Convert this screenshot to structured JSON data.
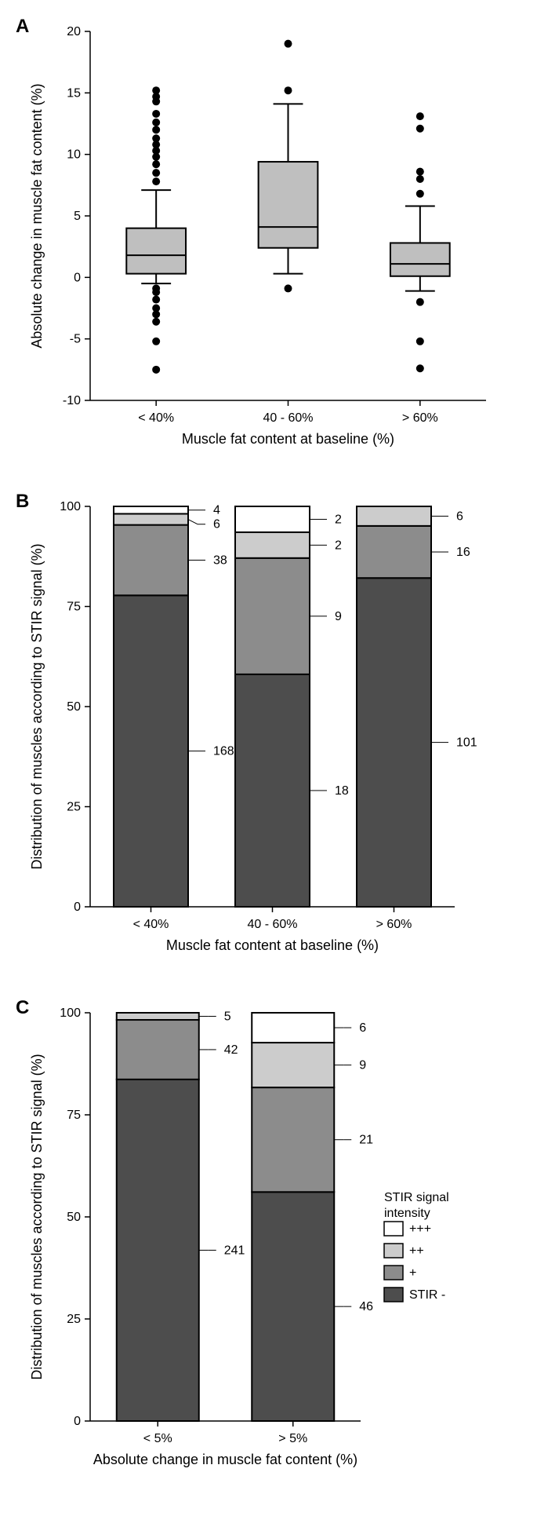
{
  "colors": {
    "box_fill": "#bfbfbf",
    "dark": "#4d4d4d",
    "mid": "#8c8c8c",
    "light": "#cccccc",
    "white": "#ffffff",
    "black": "#000000"
  },
  "panelA": {
    "label": "A",
    "type": "boxplot",
    "ylabel": "Absolute change in muscle fat content (%)",
    "xlabel": "Muscle fat content at baseline (%)",
    "ylim": [
      -10,
      20
    ],
    "ytick_step": 5,
    "categories": [
      "< 40%",
      "40 - 60%",
      "> 60%"
    ],
    "boxes": [
      {
        "q1": 0.3,
        "median": 1.8,
        "q3": 4.0,
        "whisker_lo": -0.5,
        "whisker_hi": 7.1,
        "outliers": [
          -7.5,
          -5.2,
          -3.6,
          -3.0,
          -2.5,
          -1.8,
          -1.2,
          -0.9,
          7.8,
          8.5,
          9.2,
          9.8,
          10.3,
          10.8,
          11.3,
          12.0,
          12.6,
          13.3,
          14.3,
          14.7,
          15.2
        ]
      },
      {
        "q1": 2.4,
        "median": 4.1,
        "q3": 9.4,
        "whisker_lo": 0.3,
        "whisker_hi": 14.1,
        "outliers": [
          -0.9,
          15.2,
          19.0
        ]
      },
      {
        "q1": 0.1,
        "median": 1.1,
        "q3": 2.8,
        "whisker_lo": -1.1,
        "whisker_hi": 5.8,
        "outliers": [
          -7.4,
          -5.2,
          -2.0,
          6.8,
          8.0,
          8.6,
          12.1,
          13.1
        ]
      }
    ]
  },
  "panelB": {
    "label": "B",
    "type": "stacked_bar",
    "ylabel": "Distribution of muscles according to STIR signal (%)",
    "xlabel": "Muscle fat content at baseline (%)",
    "ylim": [
      0,
      100
    ],
    "ytick_step": 25,
    "categories": [
      "< 40%",
      "40 - 60%",
      "> 60%"
    ],
    "bars": [
      {
        "counts": [
          168,
          38,
          6,
          4
        ]
      },
      {
        "counts": [
          18,
          9,
          2,
          2
        ]
      },
      {
        "counts": [
          101,
          16,
          6,
          0
        ]
      }
    ],
    "labelsets": [
      [
        {
          "n": 4
        },
        {
          "n": 6
        },
        {
          "n": 38
        },
        {
          "n": 168
        }
      ],
      [
        {
          "n": 2
        },
        {
          "n": 2
        },
        {
          "n": 9
        },
        {
          "n": 18
        }
      ],
      [
        {
          "n": 6
        },
        {
          "n": 16
        },
        {
          "n": 101
        }
      ]
    ]
  },
  "panelC": {
    "label": "C",
    "type": "stacked_bar",
    "ylabel": "Distribution of muscles according to STIR signal (%)",
    "xlabel": "Absolute change in muscle fat content (%)",
    "ylim": [
      0,
      100
    ],
    "ytick_step": 25,
    "categories": [
      "< 5%",
      "> 5%"
    ],
    "bars": [
      {
        "counts": [
          241,
          42,
          5,
          0
        ]
      },
      {
        "counts": [
          46,
          21,
          9,
          6
        ]
      }
    ],
    "labelsets": [
      [
        {
          "n": 5
        },
        {
          "n": 42
        },
        {
          "n": 241
        }
      ],
      [
        {
          "n": 6
        },
        {
          "n": 9
        },
        {
          "n": 21
        },
        {
          "n": 46
        }
      ]
    ],
    "legend": {
      "title": "STIR signal intensity",
      "items": [
        {
          "label": "+++",
          "swatch": "white"
        },
        {
          "label": "++",
          "swatch": "light"
        },
        {
          "label": "+",
          "swatch": "mid"
        },
        {
          "label": "STIR -",
          "swatch": "dark"
        }
      ]
    }
  }
}
